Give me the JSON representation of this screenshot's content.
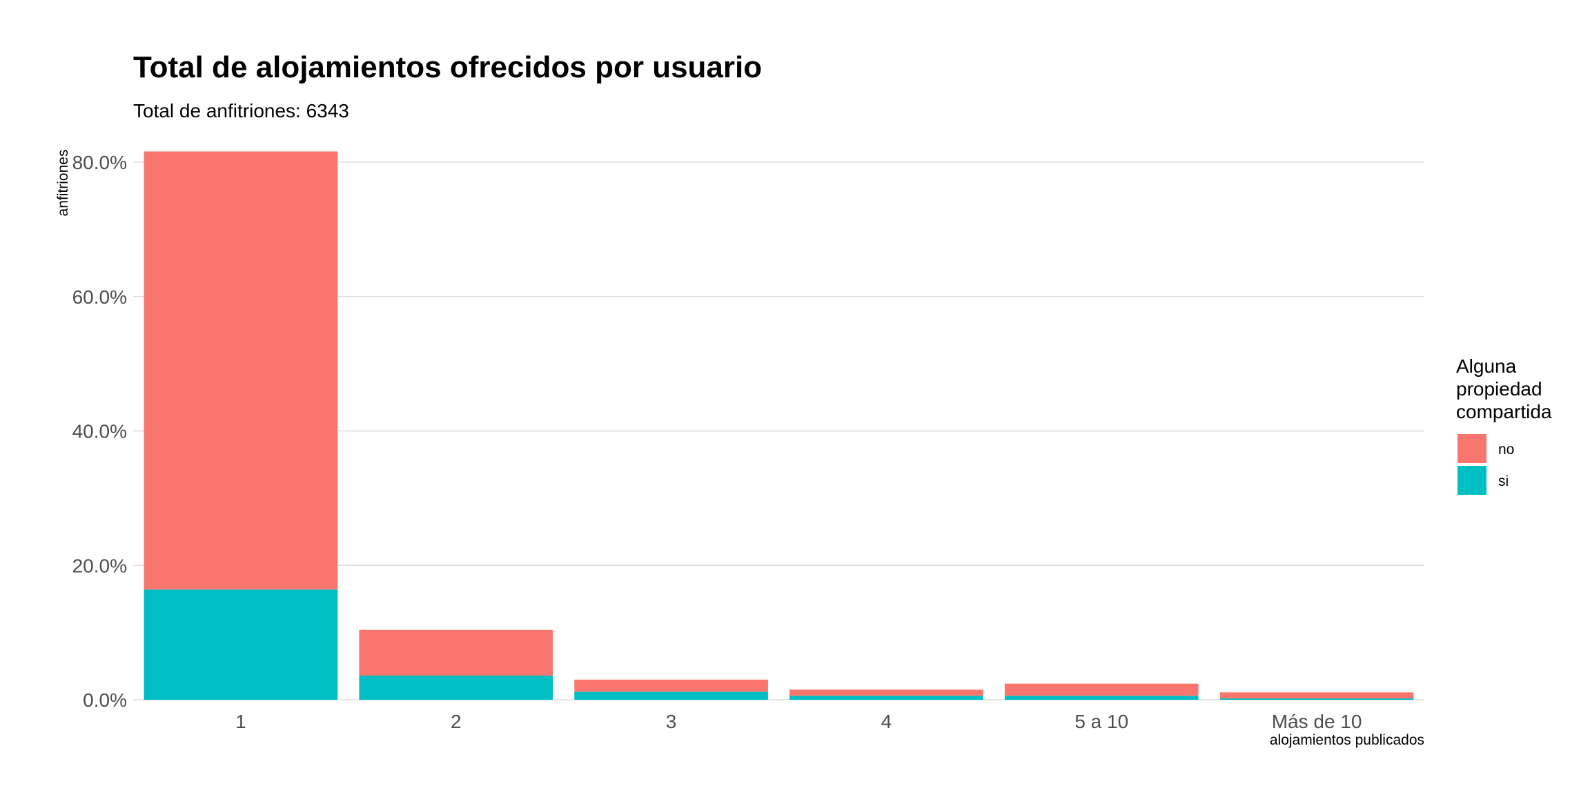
{
  "chart_data": {
    "type": "bar",
    "stacked": true,
    "title": "Total de alojamientos ofrecidos por usuario",
    "subtitle": "Total de anfitriones: 6343",
    "xlabel": "alojamientos publicados",
    "ylabel": "anfitriones",
    "categories": [
      "1",
      "2",
      "3",
      "4",
      "5 a 10",
      "Más de 10"
    ],
    "series": [
      {
        "name": "si",
        "color": "#00BFC4",
        "values": [
          16.4,
          3.6,
          1.2,
          0.6,
          0.6,
          0.2
        ]
      },
      {
        "name": "no",
        "color": "#F8766D",
        "values": [
          65.2,
          6.8,
          1.8,
          0.9,
          1.8,
          0.9
        ]
      }
    ],
    "ylim": [
      0,
      80
    ],
    "y_ticks": [
      0,
      20,
      40,
      60,
      80
    ],
    "y_tick_labels": [
      "0.0%",
      "20.0%",
      "40.0%",
      "60.0%",
      "80.0%"
    ],
    "grid": true,
    "legend": {
      "title_lines": [
        "Alguna",
        "propiedad",
        "compartida"
      ],
      "placement": "right",
      "entries": [
        {
          "label": "no",
          "color": "#F8766D"
        },
        {
          "label": "si",
          "color": "#00BFC4"
        }
      ]
    }
  }
}
